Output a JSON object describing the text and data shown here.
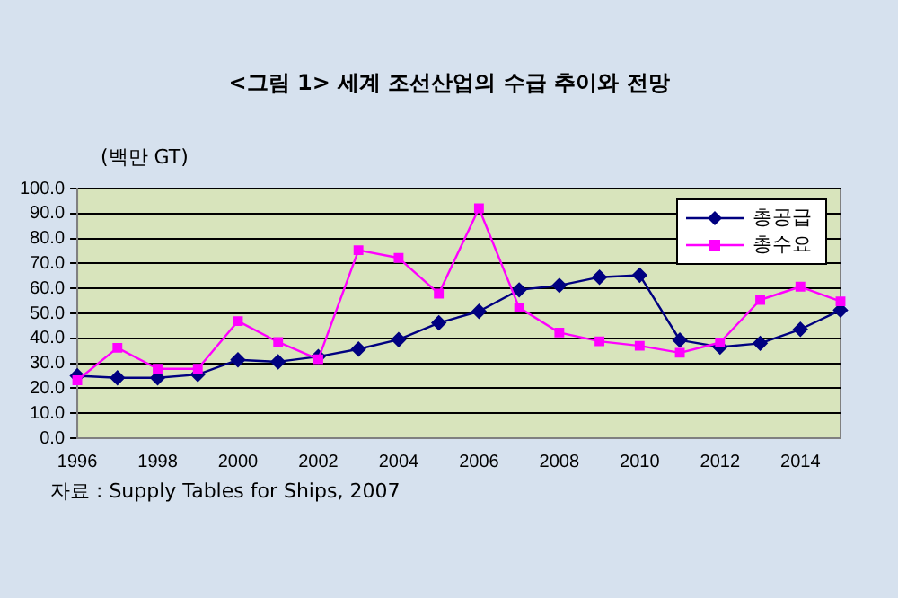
{
  "chart_data": {
    "type": "line",
    "title": "<그림 1> 세계 조선산업의 수급 추이와 전망",
    "ylabel": "(백만 GT)",
    "annotations": [
      "자료 : Supply Tables for Ships, 2007"
    ],
    "categories": [
      "1996",
      null,
      "1998",
      null,
      "2000",
      null,
      "2002",
      null,
      "2004",
      null,
      "2006",
      null,
      "2008",
      null,
      "2010",
      null,
      "2012",
      null,
      "2014",
      null
    ],
    "series": [
      {
        "name": "총공급",
        "color": "#000080",
        "marker": "diamond",
        "values": [
          25,
          24.2,
          24.2,
          25.5,
          31.4,
          30.6,
          32.7,
          35.7,
          39.5,
          46.2,
          50.8,
          59.4,
          61.2,
          64.5,
          65.3,
          39.3,
          36.5,
          38,
          43.6,
          51.3
        ]
      },
      {
        "name": "총수요",
        "color": "#ff00ff",
        "marker": "square",
        "values": [
          23.2,
          36.2,
          27.8,
          27.8,
          46.9,
          38.5,
          31.6,
          75.3,
          72.2,
          57.9,
          92.1,
          52.3,
          42.3,
          38.8,
          37,
          34.2,
          38.3,
          55.4,
          60.7,
          54.8
        ]
      }
    ],
    "ylim": [
      0,
      100
    ],
    "yticks": [
      {
        "value": 0,
        "label": "0.0"
      },
      {
        "value": 10,
        "label": "10.0"
      },
      {
        "value": 20,
        "label": "20.0"
      },
      {
        "value": 30,
        "label": "30.0"
      },
      {
        "value": 40,
        "label": "40.0"
      },
      {
        "value": 50,
        "label": "50.0"
      },
      {
        "value": 60,
        "label": "60.0"
      },
      {
        "value": 70,
        "label": "70.0"
      },
      {
        "value": 80,
        "label": "80.0"
      },
      {
        "value": 90,
        "label": "90.0"
      },
      {
        "value": 100,
        "label": "100.0"
      }
    ],
    "grid": "y",
    "legend": "top right",
    "line_style": "solid"
  }
}
